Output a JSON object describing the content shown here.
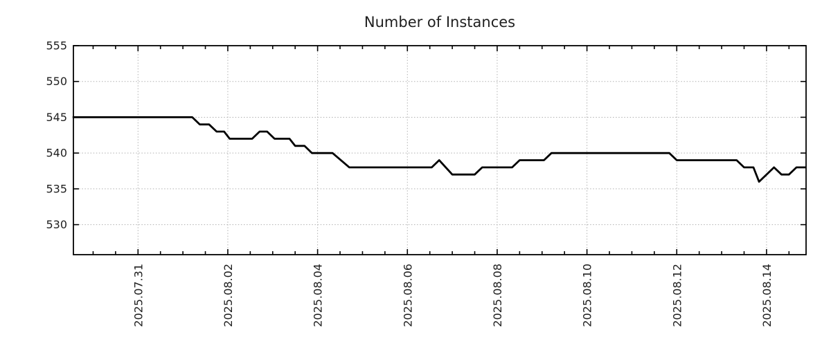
{
  "chart_data": {
    "type": "line",
    "title": "Number of Instances",
    "grid": true,
    "legend": false,
    "x_axis": {
      "label": "",
      "range": [
        "2025-07-29 13:00",
        "2025-08-14 21:00"
      ],
      "major_ticks": [
        {
          "date": "2025-07-31",
          "label": "2025.07.31"
        },
        {
          "date": "2025-08-02",
          "label": "2025.08.02"
        },
        {
          "date": "2025-08-04",
          "label": "2025.08.04"
        },
        {
          "date": "2025-08-06",
          "label": "2025.08.06"
        },
        {
          "date": "2025-08-08",
          "label": "2025.08.08"
        },
        {
          "date": "2025-08-10",
          "label": "2025.08.10"
        },
        {
          "date": "2025-08-12",
          "label": "2025.08.12"
        },
        {
          "date": "2025-08-14",
          "label": "2025.08.14"
        }
      ],
      "minor_tick_interval_hours": 12,
      "tick_label_rotation_deg": 90
    },
    "y_axis": {
      "label": "",
      "range": [
        525.8,
        555
      ],
      "ticks": [
        555,
        550,
        545,
        540,
        535,
        530
      ]
    },
    "series": [
      {
        "name": "instances",
        "color": "#000000",
        "points": [
          [
            "2025-07-29 13:00",
            545
          ],
          [
            "2025-08-01 05:00",
            545
          ],
          [
            "2025-08-01 09:00",
            544
          ],
          [
            "2025-08-01 14:00",
            544
          ],
          [
            "2025-08-01 18:00",
            543
          ],
          [
            "2025-08-01 22:00",
            543
          ],
          [
            "2025-08-02 01:00",
            542
          ],
          [
            "2025-08-02 13:00",
            542
          ],
          [
            "2025-08-02 17:00",
            543
          ],
          [
            "2025-08-02 21:00",
            543
          ],
          [
            "2025-08-03 01:00",
            542
          ],
          [
            "2025-08-03 09:00",
            542
          ],
          [
            "2025-08-03 12:00",
            541
          ],
          [
            "2025-08-03 17:00",
            541
          ],
          [
            "2025-08-03 21:00",
            540
          ],
          [
            "2025-08-04 08:00",
            540
          ],
          [
            "2025-08-04 17:00",
            538
          ],
          [
            "2025-08-06 13:00",
            538
          ],
          [
            "2025-08-06 17:00",
            539
          ],
          [
            "2025-08-07 00:00",
            537
          ],
          [
            "2025-08-07 12:00",
            537
          ],
          [
            "2025-08-07 16:00",
            538
          ],
          [
            "2025-08-08 08:00",
            538
          ],
          [
            "2025-08-08 12:00",
            539
          ],
          [
            "2025-08-09 01:00",
            539
          ],
          [
            "2025-08-09 05:00",
            540
          ],
          [
            "2025-08-11 20:00",
            540
          ],
          [
            "2025-08-12 00:00",
            539
          ],
          [
            "2025-08-13 08:00",
            539
          ],
          [
            "2025-08-13 12:00",
            538
          ],
          [
            "2025-08-13 17:00",
            538
          ],
          [
            "2025-08-13 20:00",
            536
          ],
          [
            "2025-08-14 04:00",
            538
          ],
          [
            "2025-08-14 08:00",
            537
          ],
          [
            "2025-08-14 12:00",
            537
          ],
          [
            "2025-08-14 16:00",
            538
          ],
          [
            "2025-08-14 21:00",
            538
          ]
        ]
      }
    ],
    "colors": {
      "line": "#000000",
      "grid": "#b0b0b0",
      "axis": "#000000",
      "text": "#1f1f1f",
      "background": "#ffffff"
    }
  }
}
